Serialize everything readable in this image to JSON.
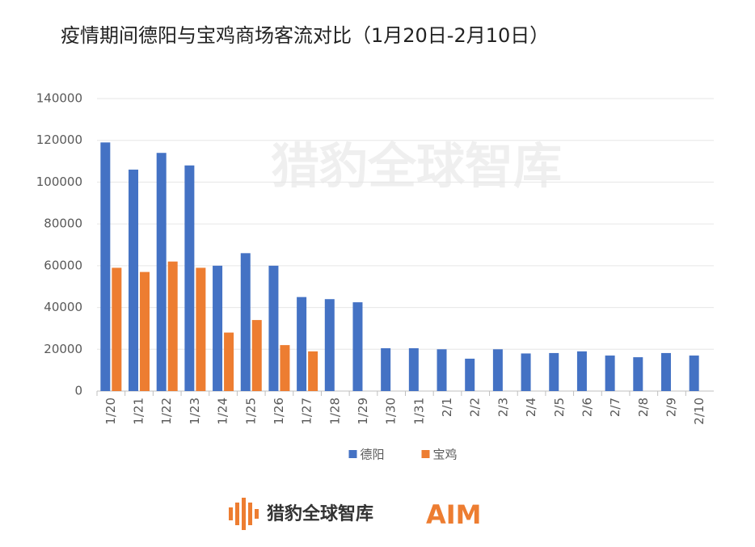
{
  "chart_data": {
    "type": "bar",
    "title": "疫情期间德阳与宝鸡商场客流对比（1月20日-2月10日）",
    "categories": [
      "1/20",
      "1/21",
      "1/22",
      "1/23",
      "1/24",
      "1/25",
      "1/26",
      "1/27",
      "1/28",
      "1/29",
      "1/30",
      "1/31",
      "2/1",
      "2/2",
      "2/3",
      "2/4",
      "2/5",
      "2/6",
      "2/7",
      "2/8",
      "2/9",
      "2/10"
    ],
    "series": [
      {
        "name": "德阳",
        "color": "#4472c4",
        "values": [
          119000,
          106000,
          114000,
          108000,
          60000,
          66000,
          60000,
          45000,
          44000,
          42500,
          20500,
          20500,
          20000,
          15500,
          20000,
          18000,
          18200,
          19000,
          17000,
          16200,
          18200,
          17000
        ]
      },
      {
        "name": "宝鸡",
        "color": "#ed7d31",
        "values": [
          59000,
          57000,
          62000,
          59000,
          28000,
          34000,
          22000,
          19000,
          null,
          null,
          null,
          null,
          null,
          null,
          null,
          null,
          null,
          null,
          null,
          null,
          null,
          null
        ]
      }
    ],
    "ylim": [
      0,
      140000
    ],
    "yticks": [
      0,
      20000,
      40000,
      60000,
      80000,
      100000,
      120000,
      140000
    ],
    "grid": true,
    "legend": "bottom"
  },
  "footer": {
    "brand": "猎豹全球智库",
    "logo": "AIM"
  }
}
